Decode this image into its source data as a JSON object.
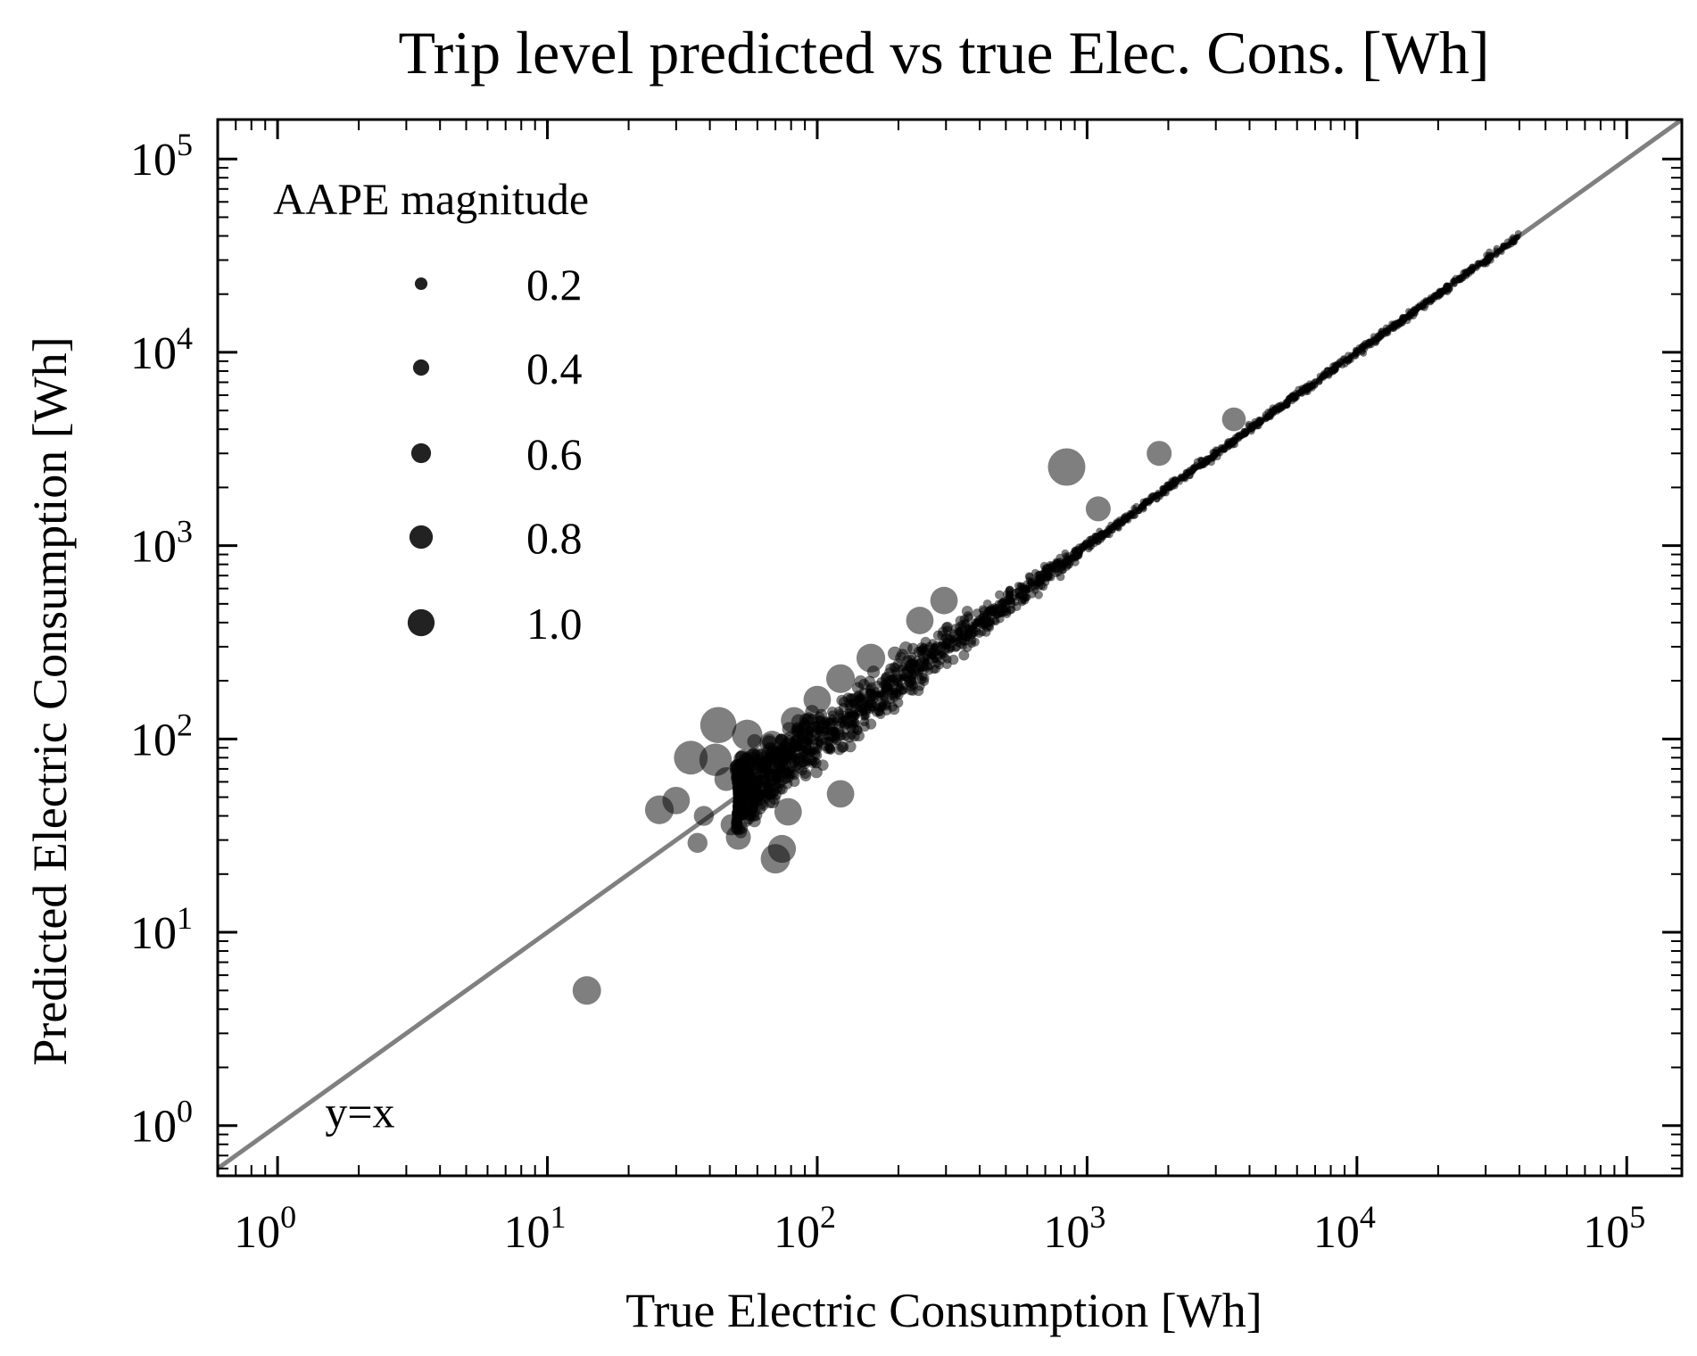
{
  "chart_data": {
    "type": "scatter",
    "title": "Trip level predicted vs true Elec. Cons. [Wh]",
    "xlabel": "True Electric Consumption [Wh]",
    "ylabel": "Predicted Electric Consumption [Wh]",
    "xscale": "log",
    "yscale": "log",
    "xlim": [
      0.6,
      160000
    ],
    "ylim": [
      0.55,
      160000
    ],
    "xtick_labels": [
      {
        "base": "10",
        "exp": "0",
        "value": 1
      },
      {
        "base": "10",
        "exp": "1",
        "value": 10
      },
      {
        "base": "10",
        "exp": "2",
        "value": 100
      },
      {
        "base": "10",
        "exp": "3",
        "value": 1000
      },
      {
        "base": "10",
        "exp": "4",
        "value": 10000
      },
      {
        "base": "10",
        "exp": "5",
        "value": 100000
      }
    ],
    "ytick_labels": [
      {
        "base": "10",
        "exp": "0",
        "value": 1
      },
      {
        "base": "10",
        "exp": "1",
        "value": 10
      },
      {
        "base": "10",
        "exp": "2",
        "value": 100
      },
      {
        "base": "10",
        "exp": "3",
        "value": 1000
      },
      {
        "base": "10",
        "exp": "4",
        "value": 10000
      },
      {
        "base": "10",
        "exp": "5",
        "value": 100000
      }
    ],
    "grid": false,
    "legend": {
      "title": "AAPE magnitude",
      "placement": "upper-left",
      "entries": [
        "0.2",
        "0.4",
        "0.6",
        "0.8",
        "1.0"
      ],
      "sizes": [
        0.2,
        0.4,
        0.6,
        0.8,
        1.0
      ]
    },
    "reference_line": {
      "label": "y=x",
      "color": "#808080"
    },
    "marker_color": "#000000",
    "outliers": [
      {
        "x": 14,
        "y": 5,
        "aape": 0.64
      },
      {
        "x": 840,
        "y": 2550,
        "aape": 1.0
      },
      {
        "x": 43,
        "y": 118,
        "aape": 0.95
      },
      {
        "x": 34,
        "y": 80,
        "aape": 0.85
      },
      {
        "x": 42,
        "y": 78,
        "aape": 0.8
      },
      {
        "x": 55,
        "y": 105,
        "aape": 0.72
      },
      {
        "x": 26,
        "y": 43,
        "aape": 0.65
      },
      {
        "x": 30,
        "y": 48,
        "aape": 0.6
      },
      {
        "x": 70,
        "y": 24,
        "aape": 0.68
      },
      {
        "x": 74,
        "y": 27,
        "aape": 0.62
      },
      {
        "x": 51,
        "y": 31,
        "aape": 0.5
      },
      {
        "x": 38,
        "y": 40,
        "aape": 0.3
      },
      {
        "x": 36,
        "y": 29,
        "aape": 0.3
      },
      {
        "x": 78,
        "y": 42,
        "aape": 0.6
      },
      {
        "x": 122,
        "y": 52,
        "aape": 0.6
      },
      {
        "x": 100,
        "y": 160,
        "aape": 0.6
      },
      {
        "x": 122,
        "y": 205,
        "aape": 0.65
      },
      {
        "x": 158,
        "y": 262,
        "aape": 0.65
      },
      {
        "x": 240,
        "y": 410,
        "aape": 0.6
      },
      {
        "x": 295,
        "y": 520,
        "aape": 0.6
      },
      {
        "x": 1100,
        "y": 1550,
        "aape": 0.5
      },
      {
        "x": 1850,
        "y": 3000,
        "aape": 0.5
      },
      {
        "x": 3500,
        "y": 4500,
        "aape": 0.45
      },
      {
        "x": 82,
        "y": 125,
        "aape": 0.55
      },
      {
        "x": 68,
        "y": 95,
        "aape": 0.5
      },
      {
        "x": 46,
        "y": 62,
        "aape": 0.45
      },
      {
        "x": 58,
        "y": 78,
        "aape": 0.4
      },
      {
        "x": 48,
        "y": 36,
        "aape": 0.35
      }
    ],
    "note": "Thousands of additional points lie tightly along y=x from roughly 50 Wh to 40000 Wh."
  }
}
